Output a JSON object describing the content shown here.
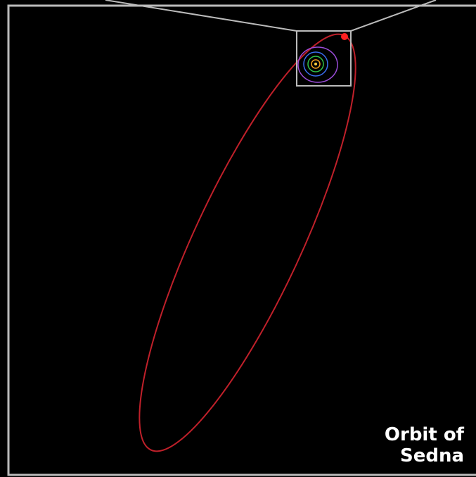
{
  "label": {
    "lines": [
      "Orbit of",
      "Sedna"
    ]
  }
}
